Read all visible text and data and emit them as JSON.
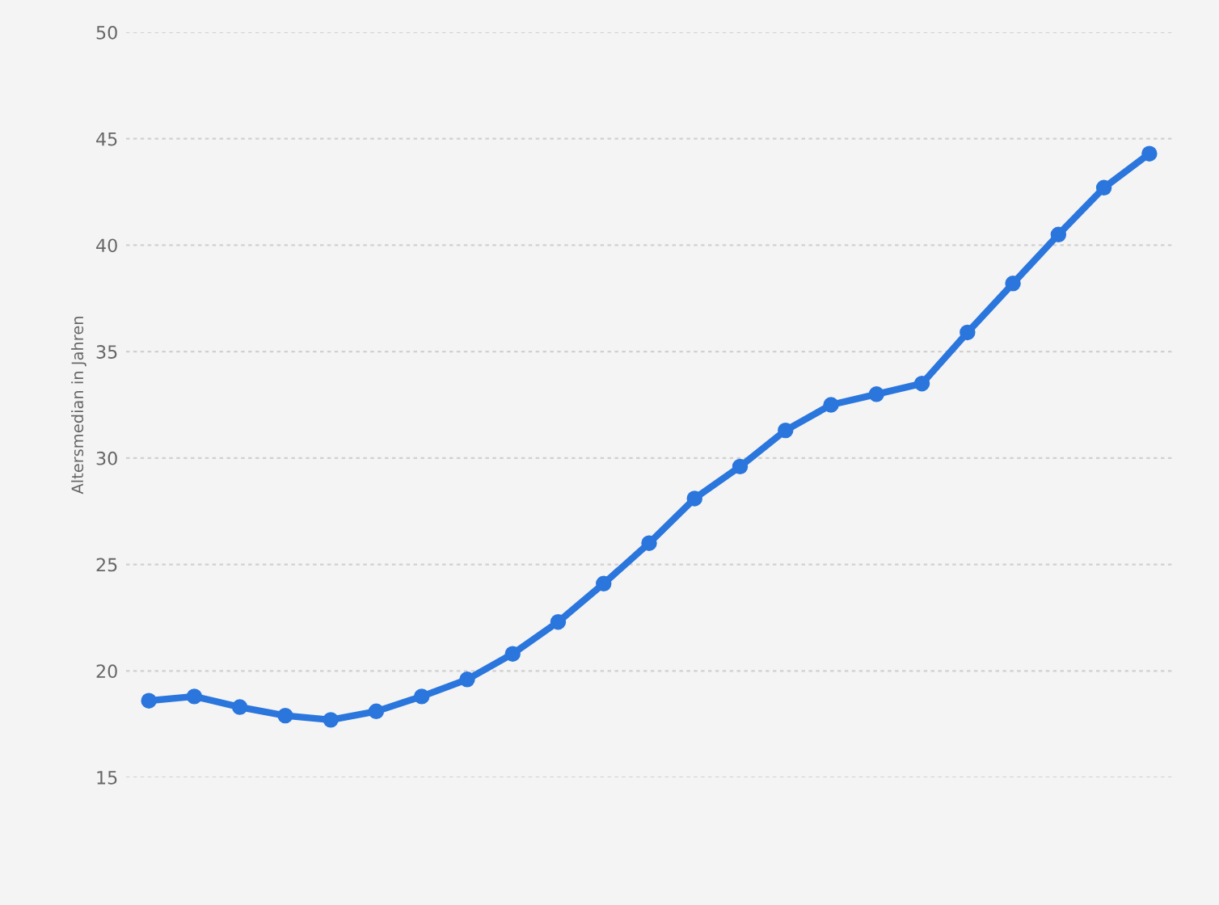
{
  "chart_data": {
    "type": "line",
    "ylabel": "Altersmedian in Jahren",
    "categories": [
      null,
      null,
      null,
      null,
      null,
      null,
      null,
      null,
      null,
      null,
      null,
      null,
      null,
      null,
      null,
      null,
      null,
      null,
      null,
      null,
      null,
      null,
      null
    ],
    "series": [
      {
        "color": "#2a76dd",
        "values": [
          18.6,
          18.8,
          18.3,
          17.9,
          17.7,
          18.1,
          18.8,
          19.6,
          20.8,
          22.3,
          24.1,
          26.0,
          28.1,
          29.6,
          31.3,
          32.5,
          33.0,
          33.5,
          35.9,
          38.2,
          40.5,
          42.7,
          44.3
        ]
      }
    ],
    "ylim": [
      15,
      50
    ],
    "yticks": [
      15,
      20,
      25,
      30,
      35,
      40,
      45,
      50
    ],
    "grid": "y",
    "tick_labels": "y",
    "marker": "circle",
    "line_style": "solid"
  }
}
